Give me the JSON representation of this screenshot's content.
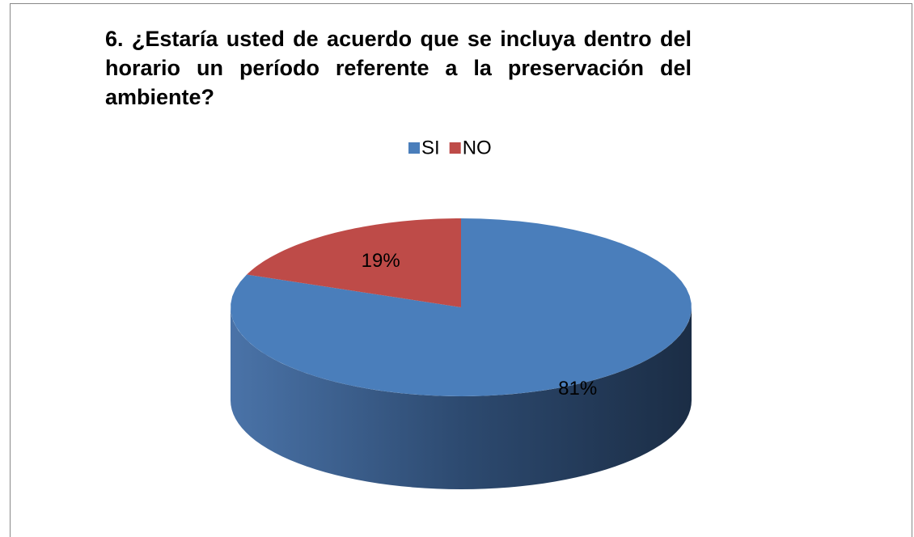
{
  "chart_data": {
    "type": "pie3d",
    "title": "6. ¿Estaría usted de acuerdo que se incluya dentro del horario un período referente a la preservación del ambiente?",
    "categories": [
      "SI",
      "NO"
    ],
    "values": [
      81,
      19
    ],
    "value_labels": [
      "81%",
      "19%"
    ],
    "colors": [
      "#4a7ebb",
      "#be4b48"
    ],
    "legend": "top"
  }
}
